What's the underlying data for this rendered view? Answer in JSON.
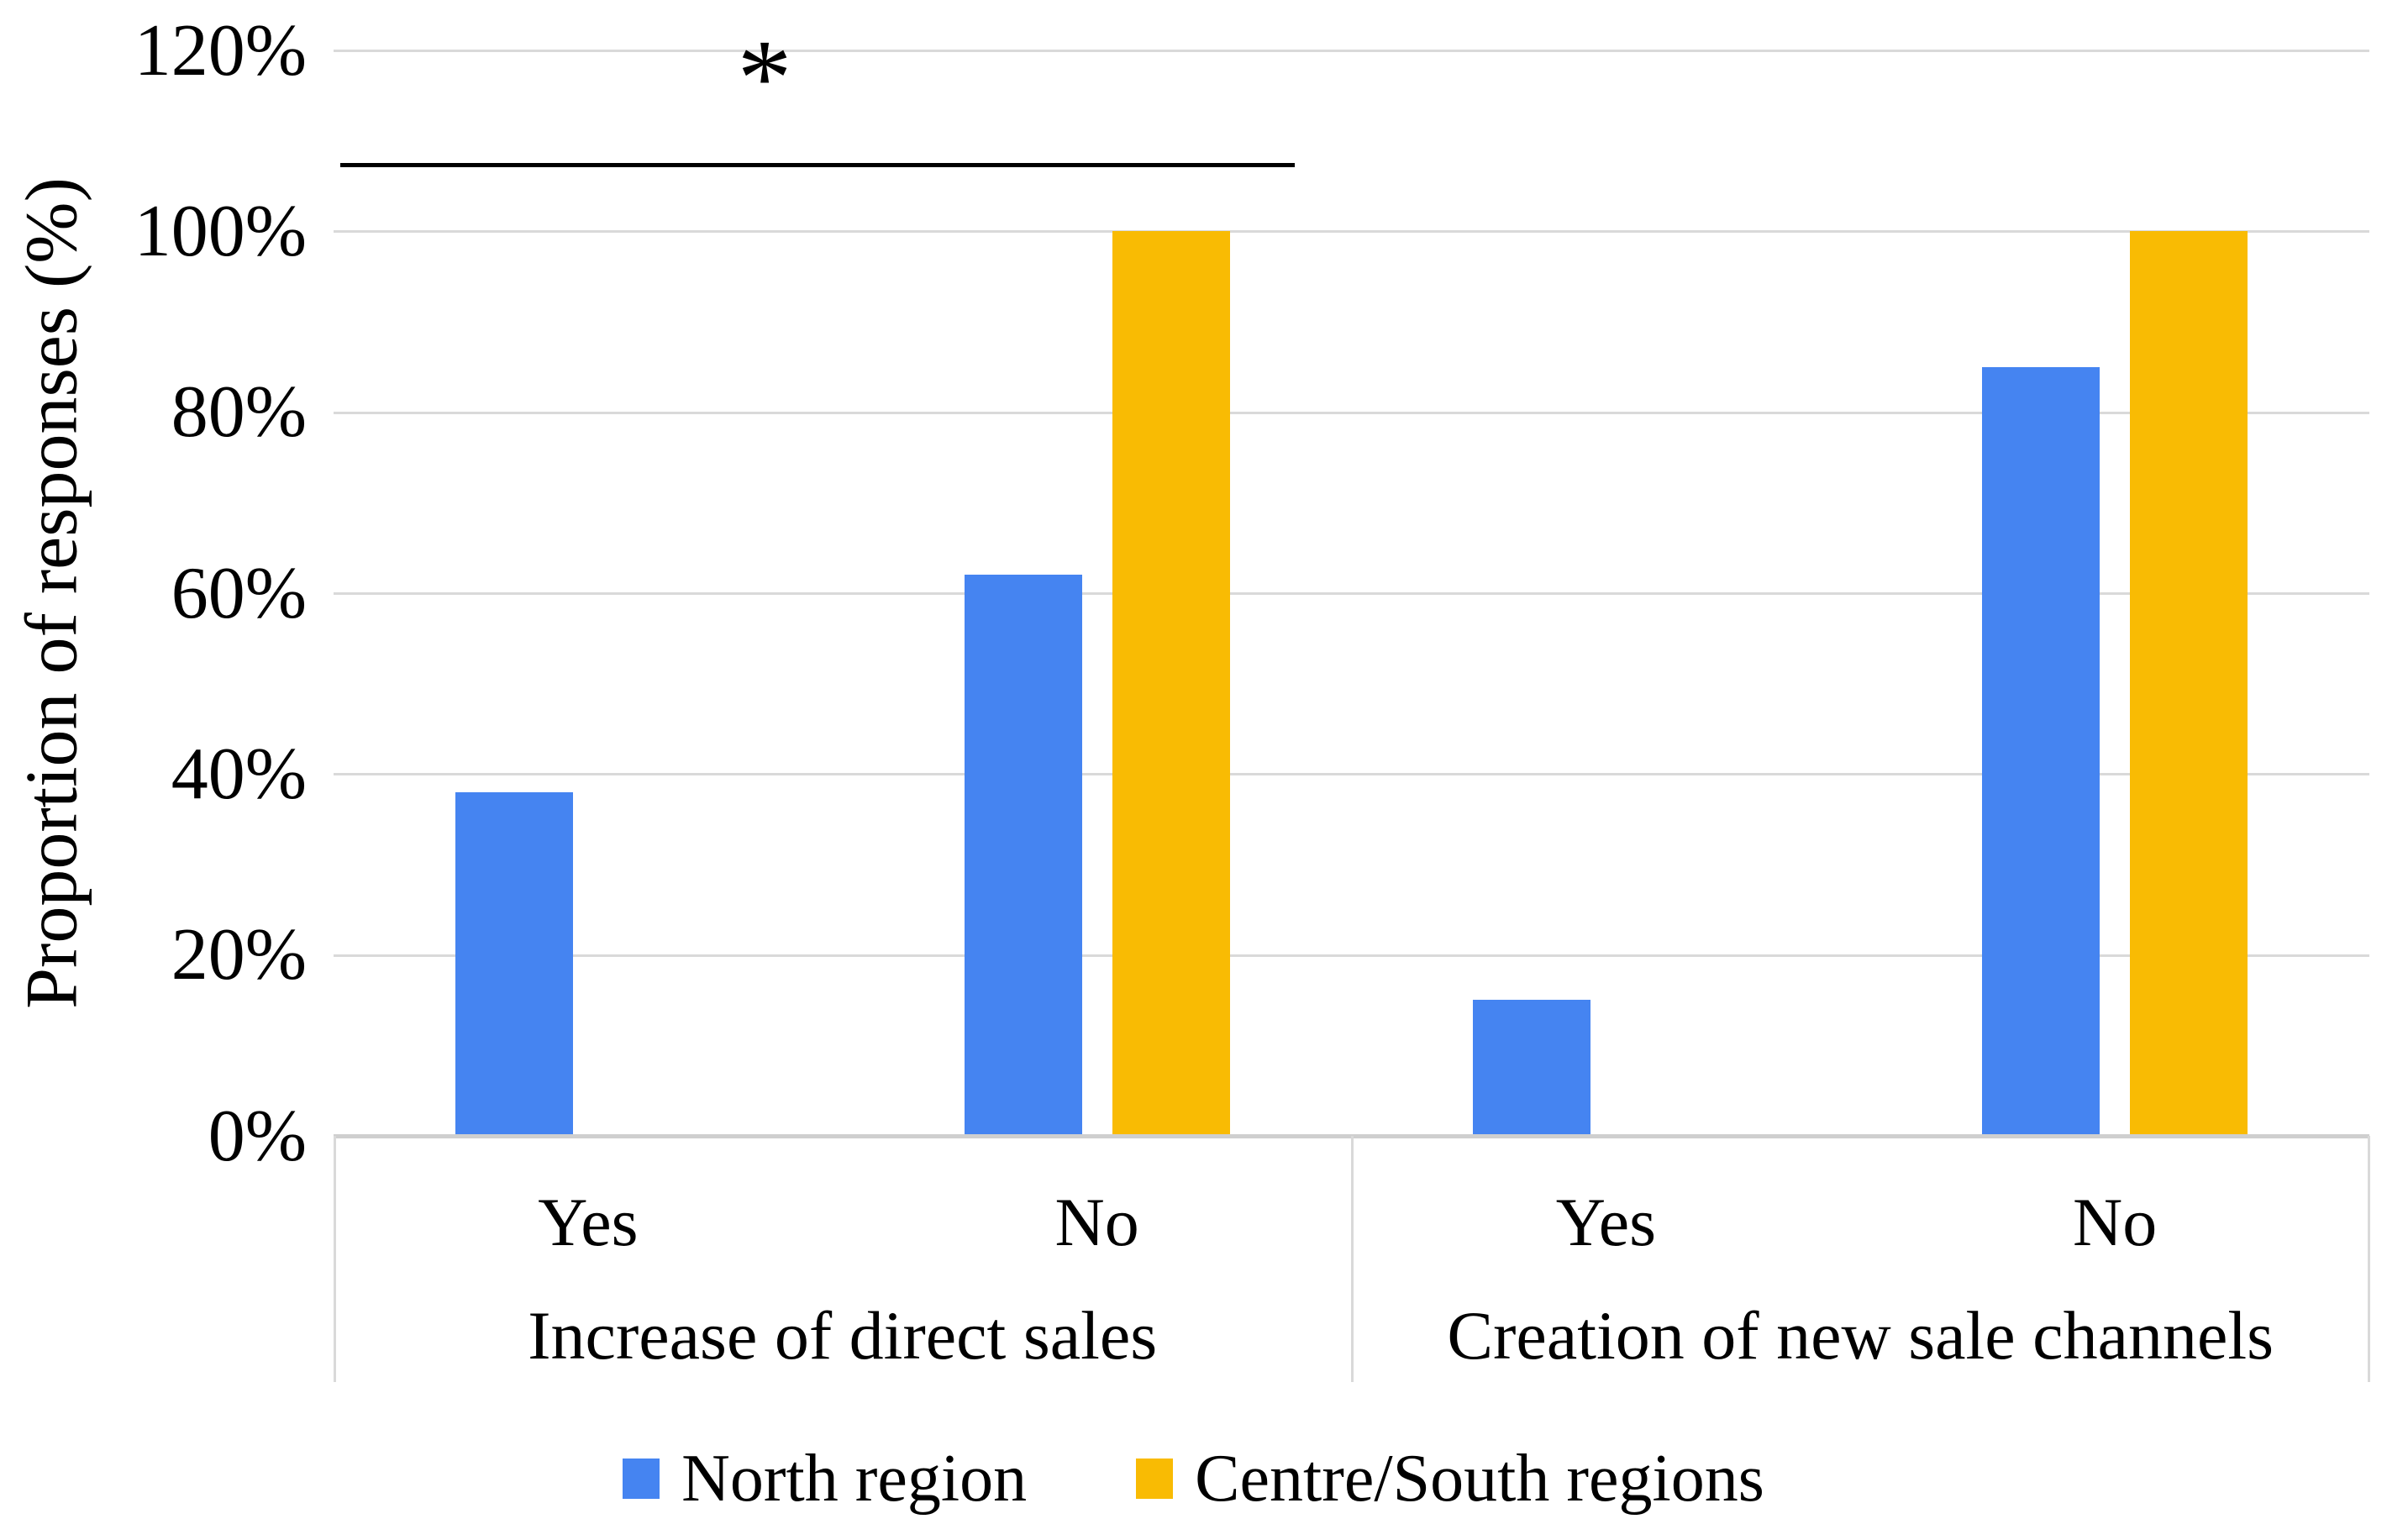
{
  "chart_data": {
    "type": "bar",
    "title": "",
    "ylabel": "Proportion of responses (%)",
    "ylim": [
      0,
      120
    ],
    "yticks": [
      0,
      20,
      40,
      60,
      80,
      100,
      120
    ],
    "ytick_suffix": "%",
    "grid": true,
    "legend_position": "bottom",
    "groups": [
      {
        "label": "Increase of direct sales",
        "categories": [
          "Yes",
          "No"
        ]
      },
      {
        "label": "Creation of new sale channels",
        "categories": [
          "Yes",
          "No"
        ]
      }
    ],
    "series": [
      {
        "name": "North region",
        "color": "#4584F1",
        "values": [
          38,
          62,
          15,
          85
        ]
      },
      {
        "name": "Centre/South regions",
        "color": "#F9BB03",
        "values": [
          0,
          100,
          0,
          100
        ]
      }
    ],
    "annotations": [
      {
        "type": "significance-bracket",
        "symbol": "*",
        "group": "Increase of direct sales",
        "spans": [
          "Yes",
          "No"
        ]
      }
    ],
    "colors": {
      "gridline": "#D9D9D9",
      "axis_line": "#CFCFCF",
      "text": "#000000"
    }
  }
}
